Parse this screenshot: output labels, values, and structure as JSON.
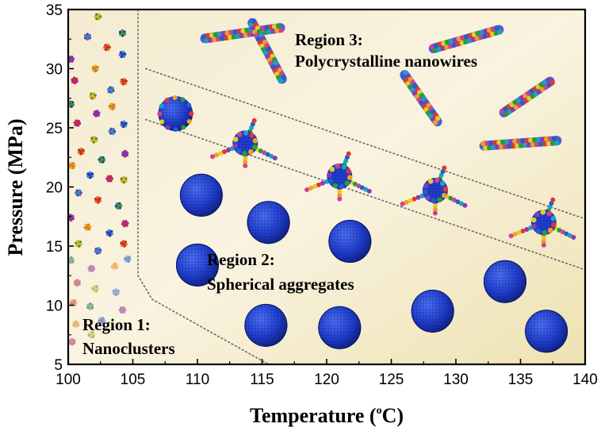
{
  "chart_data": {
    "type": "scatter",
    "title": "",
    "xlabel": "Temperature (",
    "xlabel_sup": "o",
    "xlabel_unit": "C)",
    "ylabel": "Pressure (MPa)",
    "xlim": [
      100,
      140
    ],
    "ylim": [
      5,
      35
    ],
    "x_ticks": [
      "100",
      "105",
      "110",
      "115",
      "120",
      "125",
      "130",
      "135",
      "140"
    ],
    "y_ticks": [
      "5",
      "10",
      "15",
      "20",
      "25",
      "30",
      "35"
    ],
    "grid": false,
    "region_labels": {
      "region1_title": "Region 1:",
      "region1_name": "Nanoclusters",
      "region2_title": "Region 2:",
      "region2_name": "Spherical aggregates",
      "region3_title": "Region 3:",
      "region3_name": "Polycrystalline nanowires"
    },
    "boundaries": [
      {
        "name": "boundary-1-2",
        "points": [
          [
            105.4,
            35
          ],
          [
            105.4,
            12.5
          ],
          [
            106.5,
            10.5
          ],
          [
            115.5,
            5
          ]
        ]
      },
      {
        "name": "boundary-2-3-upper",
        "points": [
          [
            106,
            30
          ],
          [
            140,
            17.3
          ]
        ]
      },
      {
        "name": "boundary-2-3-lower",
        "points": [
          [
            106,
            25.7
          ],
          [
            140,
            13
          ]
        ]
      }
    ],
    "series": [
      {
        "marker": "sphere",
        "points": [
          [
            110.3,
            19.3
          ],
          [
            115.5,
            17
          ],
          [
            110,
            13.4
          ],
          [
            121.8,
            15.4
          ],
          [
            133.8,
            12
          ],
          [
            115.3,
            8.3
          ],
          [
            121,
            8.1
          ],
          [
            128.2,
            9.5
          ],
          [
            137,
            7.8
          ]
        ]
      },
      {
        "marker": "cluster-aggregate",
        "points": [
          [
            108.3,
            26.2
          ],
          [
            113.7,
            23.7
          ],
          [
            121,
            20.9
          ],
          [
            128.4,
            19.7
          ],
          [
            136.8,
            17
          ]
        ]
      },
      {
        "marker": "nanowire",
        "points": [
          [
            113.5,
            33
          ],
          [
            115.4,
            31.5
          ],
          [
            130.8,
            32.5
          ],
          [
            127.3,
            27.5
          ],
          [
            135.5,
            27.6
          ],
          [
            135,
            23.7
          ]
        ]
      }
    ],
    "region1_markers": {
      "color_set": [
        "#e8b020",
        "#2c8fd0",
        "#cc2a2a",
        "#3c9a3c",
        "#7a3aa8",
        "#e07820",
        "#2a3ab0",
        "#b02a90"
      ],
      "points": [
        [
          102.3,
          34.4
        ],
        [
          101.5,
          32.7
        ],
        [
          103,
          31.8
        ],
        [
          104.2,
          33
        ],
        [
          100.2,
          30.8
        ],
        [
          102.1,
          30
        ],
        [
          104.2,
          31.2
        ],
        [
          100.5,
          29
        ],
        [
          101.9,
          27.7
        ],
        [
          103.3,
          28.2
        ],
        [
          104.3,
          28.9
        ],
        [
          100.2,
          27
        ],
        [
          102.2,
          26.2
        ],
        [
          103.4,
          26.8
        ],
        [
          104.3,
          25.3
        ],
        [
          100.7,
          25.4
        ],
        [
          102,
          24
        ],
        [
          103.4,
          24.7
        ],
        [
          101,
          23
        ],
        [
          102.6,
          22.3
        ],
        [
          104.4,
          22.8
        ],
        [
          100.3,
          21.8
        ],
        [
          101.7,
          21
        ],
        [
          103.2,
          20.7
        ],
        [
          104.3,
          20.6
        ],
        [
          100.8,
          19.5
        ],
        [
          102.3,
          18.9
        ],
        [
          103.9,
          18.4
        ],
        [
          100.2,
          17.4
        ],
        [
          101.5,
          16.6
        ],
        [
          103.2,
          16.1
        ],
        [
          104.4,
          16.9
        ],
        [
          100.8,
          15.2
        ],
        [
          102.3,
          14.6
        ],
        [
          104.3,
          15.2
        ],
        [
          100.2,
          13.8
        ],
        [
          101.8,
          13.1
        ],
        [
          103.6,
          13.3
        ],
        [
          104.6,
          13.9
        ],
        [
          100.7,
          11.9
        ],
        [
          102.1,
          11.4
        ],
        [
          103.7,
          11.1
        ],
        [
          100.4,
          10.2
        ],
        [
          101.7,
          9.9
        ],
        [
          104.2,
          9.6
        ],
        [
          100.6,
          8.4
        ],
        [
          102.6,
          8.7
        ],
        [
          100.3,
          6.9
        ],
        [
          101.8,
          7.5
        ]
      ]
    }
  }
}
